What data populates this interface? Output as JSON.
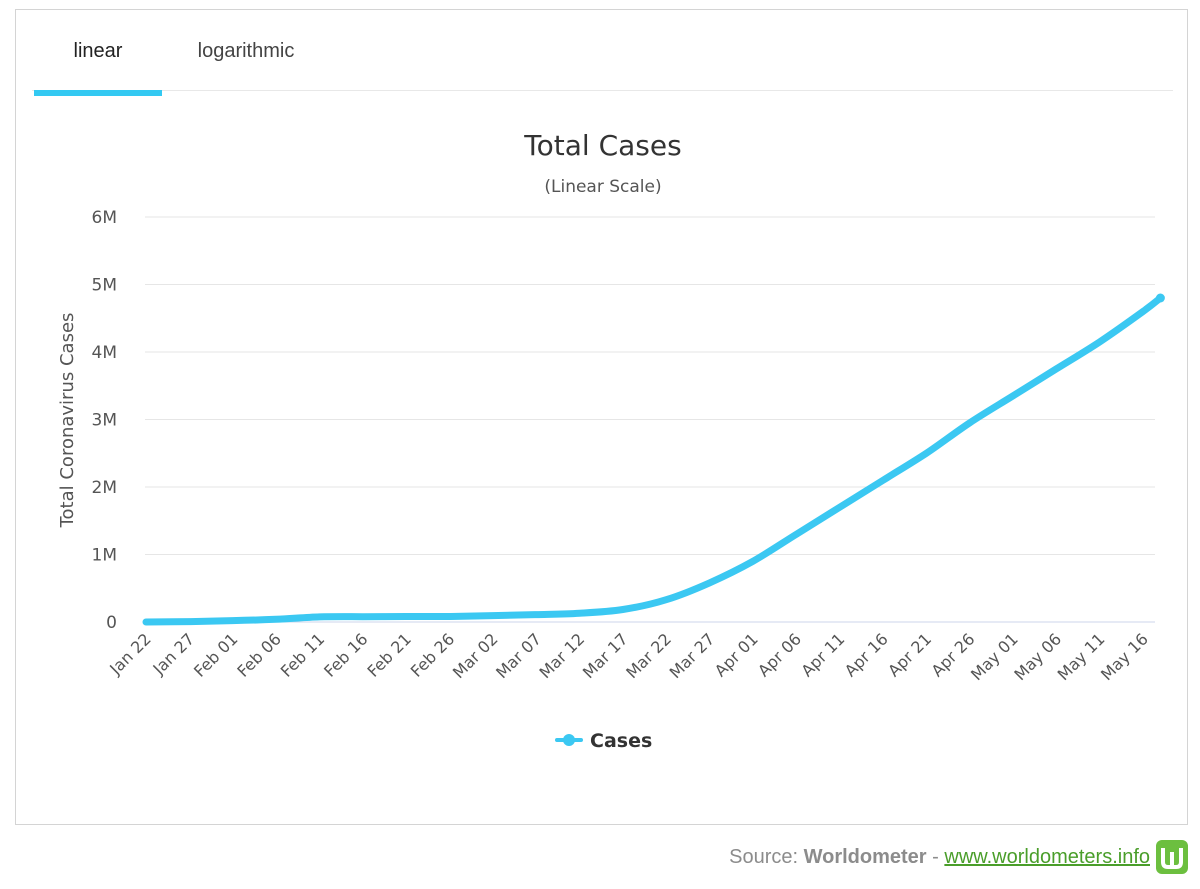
{
  "tabs": [
    {
      "label": "linear",
      "active": true
    },
    {
      "label": "logarithmic",
      "active": false
    }
  ],
  "source": {
    "prefix": "Source: ",
    "brand": "Worldometer",
    "separator": " - ",
    "link": "www.worldometers.info"
  },
  "colors": {
    "series": "#3bc8f2",
    "tab_accent": "#33c9f2",
    "logo": "#6cbf3f"
  },
  "chart_data": {
    "type": "line",
    "title": "Total Cases",
    "subtitle": "(Linear Scale)",
    "ylabel": "Total Coronavirus Cases",
    "xlabel": "",
    "ylim": [
      0,
      6000000
    ],
    "yticks": [
      {
        "value": 0,
        "label": "0"
      },
      {
        "value": 1000000,
        "label": "1M"
      },
      {
        "value": 2000000,
        "label": "2M"
      },
      {
        "value": 3000000,
        "label": "3M"
      },
      {
        "value": 4000000,
        "label": "4M"
      },
      {
        "value": 5000000,
        "label": "5M"
      },
      {
        "value": 6000000,
        "label": "6M"
      }
    ],
    "xtick_labels": [
      "Jan 22",
      "Jan 27",
      "Feb 01",
      "Feb 06",
      "Feb 11",
      "Feb 16",
      "Feb 21",
      "Feb 26",
      "Mar 02",
      "Mar 07",
      "Mar 12",
      "Mar 17",
      "Mar 22",
      "Mar 27",
      "Apr 01",
      "Apr 06",
      "Apr 11",
      "Apr 16",
      "Apr 21",
      "Apr 26",
      "May 01",
      "May 06",
      "May 11",
      "May 16"
    ],
    "xtick_interval_days": 5,
    "legend": {
      "label": "Cases",
      "position": "bottom-center"
    },
    "grid": true,
    "series": [
      {
        "name": "Cases",
        "day_index": [
          0,
          5,
          10,
          15,
          20,
          25,
          30,
          35,
          40,
          45,
          50,
          55,
          60,
          65,
          70,
          75,
          80,
          85,
          90,
          95,
          100,
          105,
          110,
          115,
          117
        ],
        "values": [
          580,
          6000,
          20000,
          40000,
          75000,
          79000,
          81000,
          82000,
          95000,
          110000,
          130000,
          185000,
          330000,
          580000,
          900000,
          1300000,
          1700000,
          2100000,
          2500000,
          2950000,
          3350000,
          3750000,
          4150000,
          4600000,
          4800000
        ]
      }
    ]
  }
}
